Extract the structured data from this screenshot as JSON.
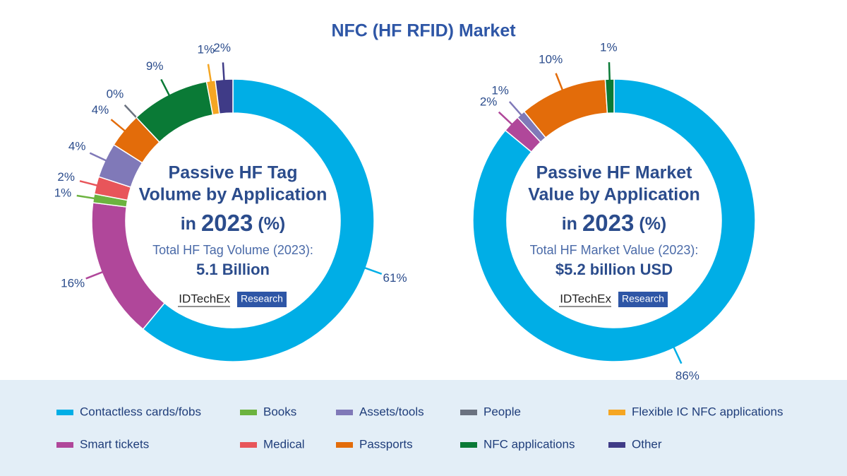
{
  "title": "NFC (HF RFID) Market",
  "logo": {
    "brand": "IDTechEx",
    "tag": "Research"
  },
  "chart_data": [
    {
      "type": "pie",
      "donut": true,
      "center_title_lines": [
        "Passive HF Tag",
        "Volume by Application"
      ],
      "center_year_line": [
        "in",
        "2023",
        "(%)"
      ],
      "total_label": "Total HF Tag Volume (2023):",
      "total_value": "5.1 Billion",
      "categories": [
        "Contactless cards/fobs",
        "Smart tickets",
        "Books",
        "Medical",
        "Assets/tools",
        "Passports",
        "People",
        "NFC applications",
        "Flexible IC NFC applications",
        "Other"
      ],
      "colors": [
        "#00aee6",
        "#b0479a",
        "#6cb33f",
        "#e8555a",
        "#8079b8",
        "#e36c0a",
        "#6b7280",
        "#0a7a36",
        "#f5a623",
        "#3f3b87"
      ],
      "values": [
        61,
        16,
        1,
        2,
        4,
        4,
        0,
        9,
        1,
        2
      ],
      "value_labels": [
        "61%",
        "16%",
        "1%",
        "2%",
        "4%",
        "4%",
        "0%",
        "9%",
        "1%",
        "2%"
      ]
    },
    {
      "type": "pie",
      "donut": true,
      "center_title_lines": [
        "Passive HF Market",
        "Value by Application"
      ],
      "center_year_line": [
        "in",
        "2023",
        "(%)"
      ],
      "total_label": "Total HF Market Value (2023):",
      "total_value": "$5.2 billion USD",
      "categories": [
        "Contactless cards/fobs",
        "Smart tickets",
        "Assets/tools",
        "Passports",
        "NFC applications"
      ],
      "colors": [
        "#00aee6",
        "#b0479a",
        "#8079b8",
        "#e36c0a",
        "#0a7a36"
      ],
      "values": [
        86,
        2,
        1,
        10,
        1
      ],
      "value_labels": [
        "86%",
        "2%",
        "1%",
        "10%",
        "1%"
      ]
    }
  ]
}
